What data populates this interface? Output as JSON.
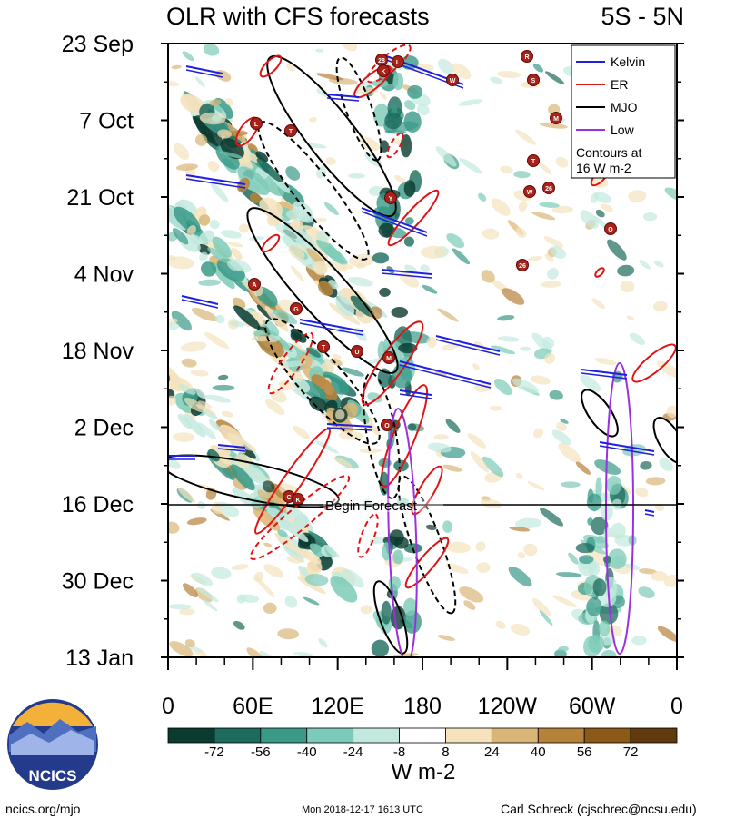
{
  "header": {
    "title": "OLR with CFS forecasts",
    "region": "5S - 5N"
  },
  "chart_data": {
    "type": "heatmap",
    "title": "OLR with CFS forecasts",
    "subtitle": "5S - 5N",
    "x_ticks": [
      "0",
      "60E",
      "120E",
      "180",
      "120W",
      "60W",
      "0"
    ],
    "x_values_deg": [
      0,
      60,
      120,
      180,
      240,
      300,
      360
    ],
    "y_ticks": [
      "23 Sep",
      "7 Oct",
      "21 Oct",
      "4 Nov",
      "18 Nov",
      "2 Dec",
      "16 Dec",
      "30 Dec",
      "13 Jan"
    ],
    "time_range_days": [
      0,
      112
    ],
    "forecast_start_label": "Begin Forecast",
    "forecast_start_day": 84,
    "legend": {
      "placement": "top-right",
      "entries": [
        {
          "label": "Kelvin",
          "color": "#1f1fe0"
        },
        {
          "label": "ER",
          "color": "#e01414"
        },
        {
          "label": "MJO",
          "color": "#000000"
        },
        {
          "label": "Low",
          "color": "#9b30e0"
        }
      ],
      "note_line1": "Contours at",
      "note_line2": "16 W m-2"
    },
    "colorbar": {
      "labels": [
        "-72",
        "-56",
        "-40",
        "-24",
        "-8",
        "8",
        "24",
        "40",
        "56",
        "72"
      ],
      "unit": "W m-2",
      "colors": [
        "#0a3b30",
        "#1d6b5c",
        "#3a9a88",
        "#7ccbb8",
        "#c3e9df",
        "#ffffff",
        "#f4e3bd",
        "#d9b678",
        "#b6823a",
        "#8c5a18",
        "#5e3a0c"
      ]
    },
    "storms": [
      "28",
      "K",
      "L",
      "W",
      "R",
      "S",
      "M",
      "L",
      "T",
      "T",
      "Y",
      "W",
      "26",
      "O",
      "26",
      "A",
      "G",
      "T",
      "U",
      "M",
      "O",
      "C",
      "K"
    ]
  },
  "footer": {
    "logo_text": "NCICS",
    "url": "ncics.org/mjo",
    "timestamp": "Mon 2018-12-17 1613 UTC",
    "author": "Carl Schreck (cjschrec@ncsu.edu)"
  }
}
